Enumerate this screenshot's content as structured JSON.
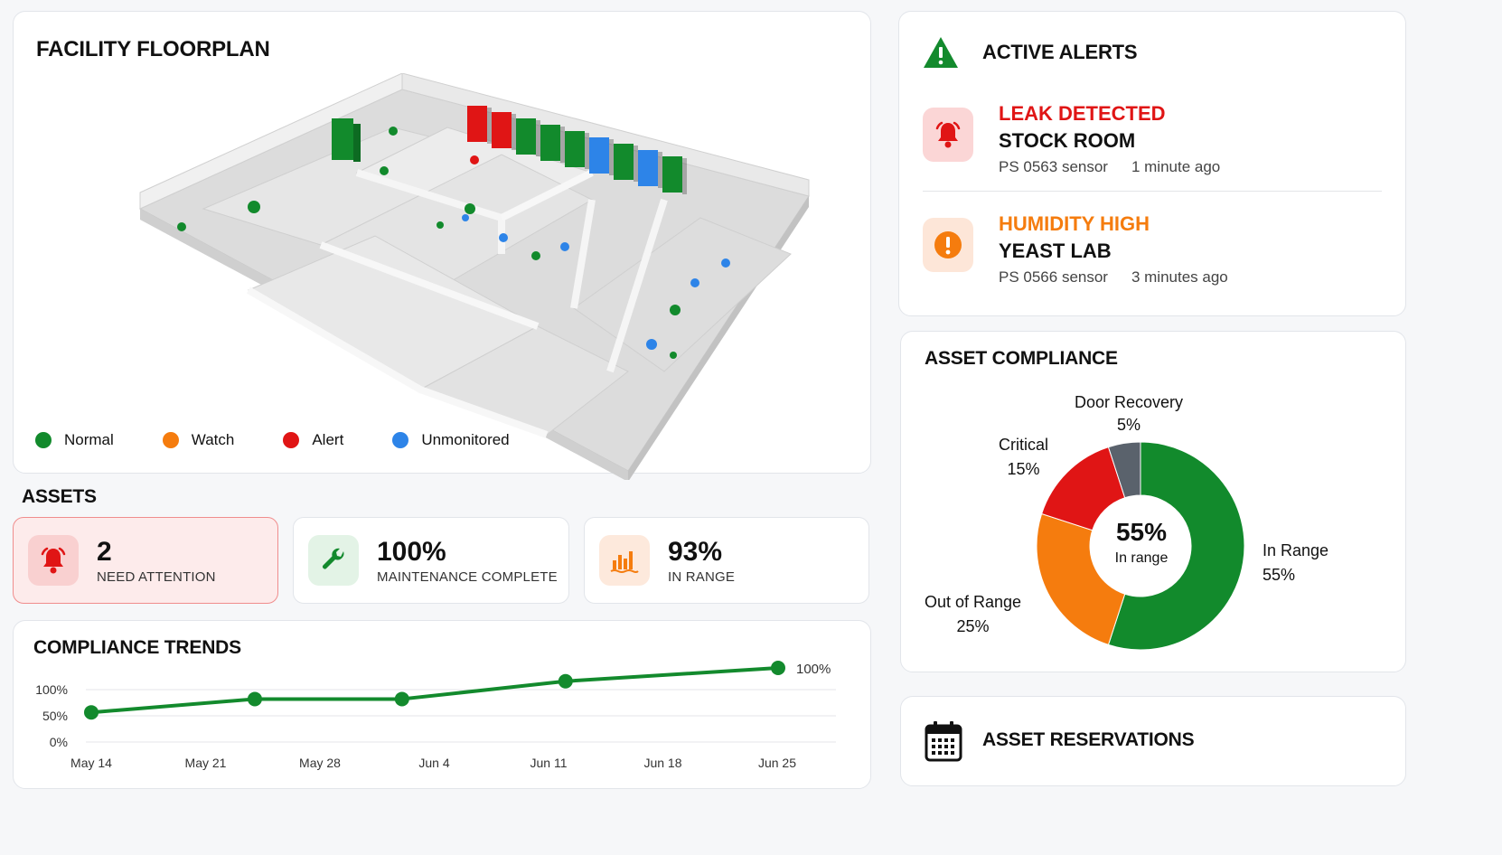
{
  "floorplan": {
    "title": "FACILITY FLOORPLAN",
    "legend": [
      {
        "label": "Normal",
        "color": "#128a2c"
      },
      {
        "label": "Watch",
        "color": "#f57c0e"
      },
      {
        "label": "Alert",
        "color": "#e01515"
      },
      {
        "label": "Unmonitored",
        "color": "#2d84e8"
      }
    ]
  },
  "assets": {
    "title": "ASSETS",
    "stats": [
      {
        "value": "2",
        "label": "NEED ATTENTION",
        "icon": "bell-icon"
      },
      {
        "value": "100%",
        "label": "MAINTENANCE COMPLETE",
        "icon": "wrench-icon"
      },
      {
        "value": "93%",
        "label": "IN RANGE",
        "icon": "bar-chart-icon"
      }
    ]
  },
  "trends": {
    "title": "COMPLIANCE TRENDS",
    "chart_data": {
      "type": "line",
      "x": [
        "May 14",
        "May 21",
        "May 28",
        "Jun 4",
        "Jun 11",
        "Jun 18",
        "Jun 25"
      ],
      "y_ticks": [
        "100%",
        "50%",
        "0%"
      ],
      "points": [
        {
          "x": "May 14",
          "y": 40
        },
        {
          "x": "May 24",
          "y": 58
        },
        {
          "x": "Jun 2",
          "y": 58
        },
        {
          "x": "Jun 12",
          "y": 82
        },
        {
          "x": "Jun 25",
          "y": 100
        }
      ],
      "end_label": "100%",
      "color": "#138a2d"
    }
  },
  "alerts": {
    "title": "ACTIVE ALERTS",
    "items": [
      {
        "type": "LEAK DETECTED",
        "room": "STOCK ROOM",
        "sensor": "PS 0563 sensor",
        "time": "1 minute ago",
        "color": "#e01515",
        "icon": "bell-icon"
      },
      {
        "type": "HUMIDITY HIGH",
        "room": "YEAST LAB",
        "sensor": "PS 0566 sensor",
        "time": "3 minutes ago",
        "color": "#f57c0e",
        "icon": "exclamation-icon"
      }
    ]
  },
  "compliance": {
    "title": "ASSET COMPLIANCE",
    "center_value": "55%",
    "center_label": "In range",
    "chart_data": {
      "type": "pie",
      "slices": [
        {
          "name": "In Range",
          "value": 55,
          "label": "55%",
          "color": "#128a2c"
        },
        {
          "name": "Out of Range",
          "value": 25,
          "label": "25%",
          "color": "#f57c0e"
        },
        {
          "name": "Critical",
          "value": 15,
          "label": "15%",
          "color": "#e01515"
        },
        {
          "name": "Door Recovery",
          "value": 5,
          "label": "5%",
          "color": "#5a626c"
        }
      ]
    }
  },
  "reservations": {
    "title": "ASSET RESERVATIONS"
  }
}
